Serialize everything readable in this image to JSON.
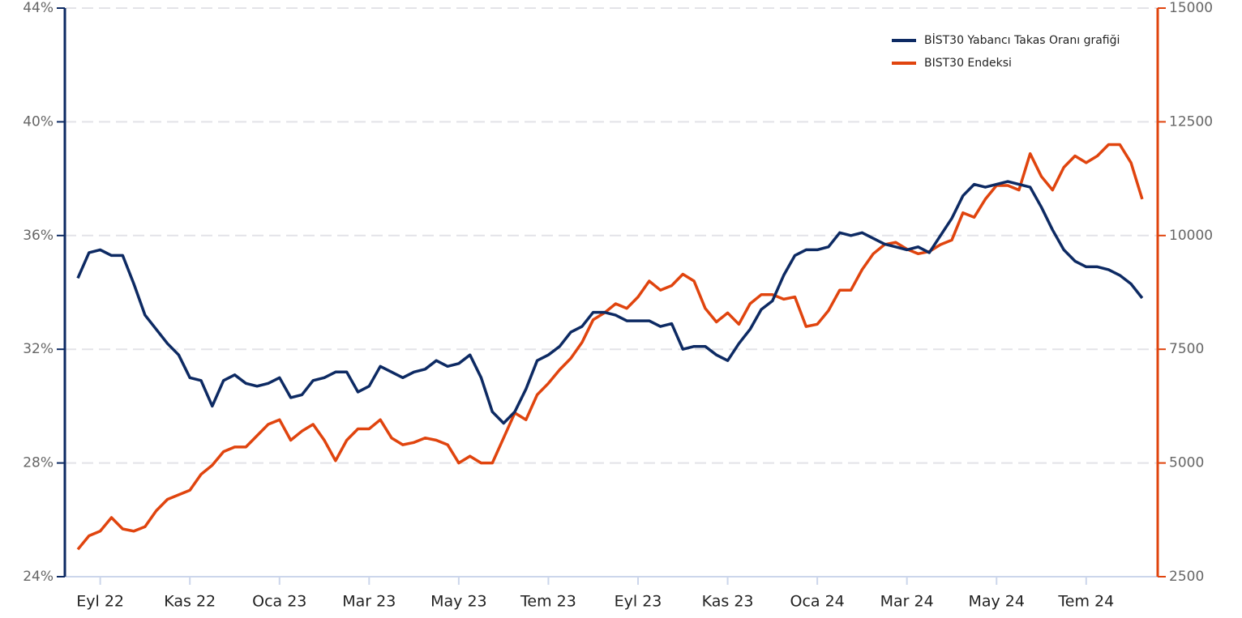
{
  "chart_data": {
    "type": "line",
    "categories": [
      null,
      null,
      "Eyl 22",
      null,
      null,
      null,
      null,
      null,
      null,
      null,
      "Kas 22",
      null,
      null,
      null,
      null,
      null,
      null,
      null,
      "Oca 23",
      null,
      null,
      null,
      null,
      null,
      null,
      null,
      "Mar 23",
      null,
      null,
      null,
      null,
      null,
      null,
      null,
      "May 23",
      null,
      null,
      null,
      null,
      null,
      null,
      null,
      "Tem 23",
      null,
      null,
      null,
      null,
      null,
      null,
      null,
      "Eyl 23",
      null,
      null,
      null,
      null,
      null,
      null,
      null,
      "Kas 23",
      null,
      null,
      null,
      null,
      null,
      null,
      null,
      "Oca 24",
      null,
      null,
      null,
      null,
      null,
      null,
      null,
      "Mar 24",
      null,
      null,
      null,
      null,
      null,
      null,
      null,
      "May 24",
      null,
      null,
      null,
      null,
      null,
      null,
      null,
      "Tem 24",
      null,
      null,
      null,
      null,
      null
    ],
    "series": [
      {
        "name": "BİST30 Yabancı Takas Oranı grafiği",
        "color": "#0d2a63",
        "axis": "y",
        "values": [
          34.5,
          35.4,
          35.5,
          35.3,
          35.3,
          34.3,
          33.2,
          32.7,
          32.2,
          31.8,
          31.0,
          30.9,
          30.0,
          30.9,
          31.1,
          30.8,
          30.7,
          30.8,
          31.0,
          30.3,
          30.4,
          30.9,
          31.0,
          31.2,
          31.2,
          30.5,
          30.7,
          31.4,
          31.2,
          31.0,
          31.2,
          31.3,
          31.6,
          31.4,
          31.5,
          31.8,
          31.0,
          29.8,
          29.4,
          29.8,
          30.6,
          31.6,
          31.8,
          32.1,
          32.6,
          32.8,
          33.3,
          33.3,
          33.2,
          33.0,
          33.0,
          33.0,
          32.8,
          32.9,
          32.0,
          32.1,
          32.1,
          31.8,
          31.6,
          32.2,
          32.7,
          33.4,
          33.7,
          34.6,
          35.3,
          35.5,
          35.5,
          35.6,
          36.1,
          36.0,
          36.1,
          35.9,
          35.7,
          35.6,
          35.5,
          35.6,
          35.4,
          36.0,
          36.6,
          37.4,
          37.8,
          37.7,
          37.8,
          37.9,
          37.8,
          37.7,
          37.0,
          36.2,
          35.5,
          35.1,
          34.9,
          34.9,
          34.8,
          34.6,
          34.3,
          33.8
        ]
      },
      {
        "name": "BIST30 Endeksi",
        "color": "#e0440e",
        "axis": "y2",
        "values": [
          3100,
          3400,
          3500,
          3800,
          3550,
          3500,
          3600,
          3950,
          4200,
          4300,
          4400,
          4750,
          4950,
          5250,
          5350,
          5350,
          5600,
          5850,
          5950,
          5500,
          5700,
          5850,
          5500,
          5050,
          5500,
          5750,
          5750,
          5950,
          5550,
          5400,
          5450,
          5550,
          5500,
          5400,
          5000,
          5150,
          5000,
          5000,
          5550,
          6100,
          5950,
          6500,
          6750,
          7050,
          7300,
          7650,
          8150,
          8300,
          8500,
          8400,
          8650,
          9000,
          8800,
          8900,
          9150,
          9000,
          8400,
          8100,
          8300,
          8050,
          8500,
          8700,
          8700,
          8600,
          8650,
          8000,
          8050,
          8350,
          8800,
          8800,
          9250,
          9600,
          9800,
          9850,
          9700,
          9600,
          9650,
          9800,
          9900,
          10500,
          10400,
          10800,
          11100,
          11100,
          11000,
          11800,
          11300,
          11000,
          11500,
          11750,
          11600,
          11750,
          12000,
          12000,
          11600,
          10800
        ]
      }
    ],
    "ylim": [
      24,
      44
    ],
    "yticks": [
      {
        "value": 24,
        "label": "24%"
      },
      {
        "value": 28,
        "label": "28%"
      },
      {
        "value": 32,
        "label": "32%"
      },
      {
        "value": 36,
        "label": "36%"
      },
      {
        "value": 40,
        "label": "40%"
      },
      {
        "value": 44,
        "label": "44%"
      }
    ],
    "y2lim": [
      2500,
      15000
    ],
    "y2ticks": [
      2500,
      5000,
      7500,
      10000,
      12500,
      15000
    ],
    "grid": true,
    "legend": "top-right"
  }
}
